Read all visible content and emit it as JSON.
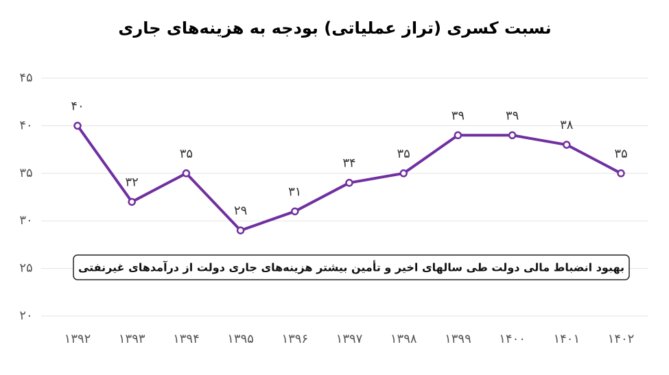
{
  "chart_data": {
    "type": "line",
    "title": "نسبت کسری (تراز عملیاتی) بودجه به هزینه‌های جاری",
    "annotation": "بهبود انضباط مالی دولت طی سالهای اخیر و تأمین بیشتر هزینه‌های جاری دولت از درآمدهای غیرنفتی",
    "categories": [
      "۱۳۹۲",
      "۱۳۹۳",
      "۱۳۹۴",
      "۱۳۹۵",
      "۱۳۹۶",
      "۱۳۹۷",
      "۱۳۹۸",
      "۱۳۹۹",
      "۱۴۰۰",
      "۱۴۰۱",
      "۱۴۰۲"
    ],
    "values": [
      40,
      32,
      35,
      29,
      31,
      34,
      35,
      39,
      39,
      38,
      35
    ],
    "value_labels": [
      "۴۰",
      "۳۲",
      "۳۵",
      "۲۹",
      "۳۱",
      "۳۴",
      "۳۵",
      "۳۹",
      "۳۹",
      "۳۸",
      "۳۵"
    ],
    "color": "#7030a0",
    "ylim": [
      20,
      45
    ],
    "yticks": [
      {
        "value": 20,
        "label": "۲۰"
      },
      {
        "value": 25,
        "label": "۲۵"
      },
      {
        "value": 30,
        "label": "۳۰"
      },
      {
        "value": 35,
        "label": "۳۵"
      },
      {
        "value": 40,
        "label": "۴۰"
      },
      {
        "value": 45,
        "label": "۴۵"
      }
    ],
    "grid": true
  }
}
